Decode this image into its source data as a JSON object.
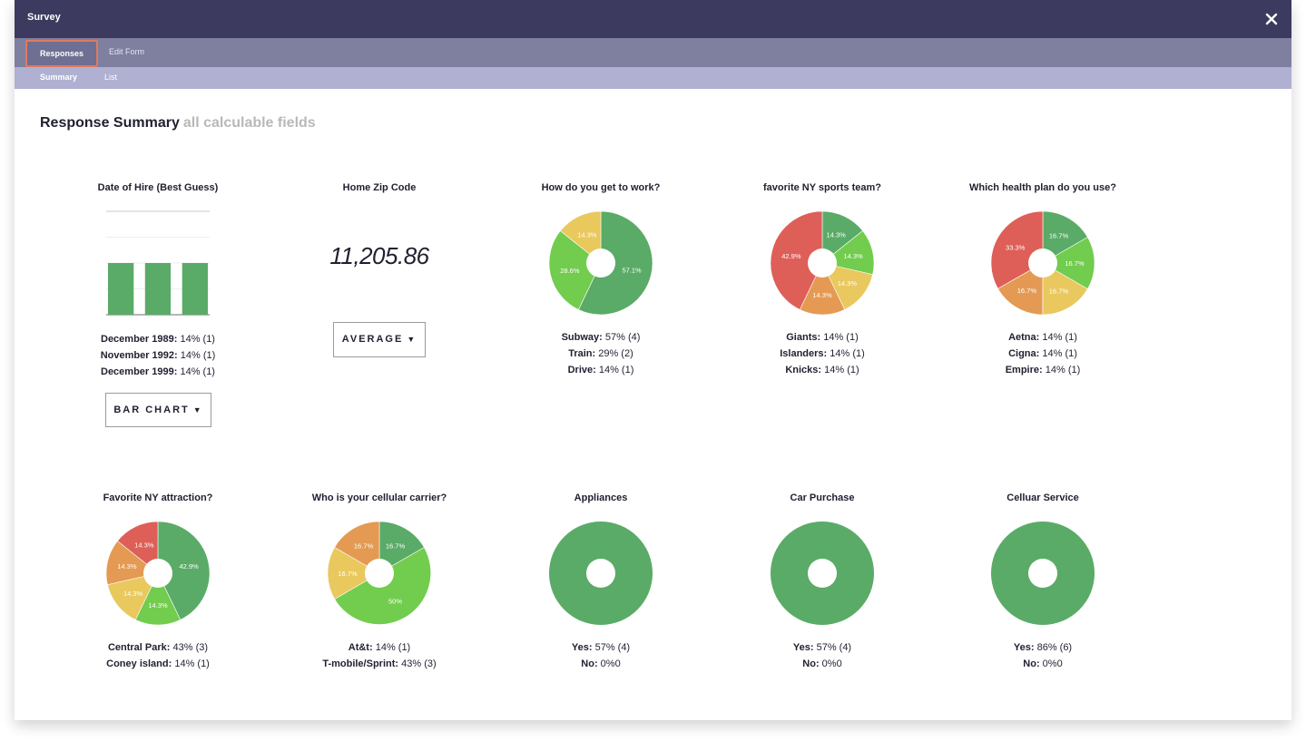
{
  "window": {
    "title": "Survey"
  },
  "tabs": {
    "primary": [
      "Responses",
      "Edit Form"
    ],
    "secondary": [
      "Summary",
      "List"
    ]
  },
  "heading": {
    "title": "Response Summary",
    "subtitle": "all calculable fields"
  },
  "colors": {
    "dark_green": "#5aab67",
    "green": "#72cc4e",
    "yellow": "#e9c85e",
    "orange": "#e49a52",
    "red": "#de5f58"
  },
  "cards": {
    "hire": {
      "question": "Date of Hire (Best Guess)",
      "legend": [
        {
          "label": "December 1989:",
          "value": "14% (1)"
        },
        {
          "label": "November 1992:",
          "value": "14% (1)"
        },
        {
          "label": "December 1999:",
          "value": "14% (1)"
        }
      ],
      "button": "BAR CHART"
    },
    "zip": {
      "question": "Home Zip Code",
      "value": "11,205.86",
      "button": "AVERAGE"
    },
    "work": {
      "question": "How do you get to work?",
      "legend": [
        {
          "label": "Subway:",
          "value": "57% (4)"
        },
        {
          "label": "Train:",
          "value": "29% (2)"
        },
        {
          "label": "Drive:",
          "value": "14% (1)"
        }
      ]
    },
    "sports": {
      "question": "favorite NY sports team?",
      "legend": [
        {
          "label": "Giants:",
          "value": "14% (1)"
        },
        {
          "label": "Islanders:",
          "value": "14% (1)"
        },
        {
          "label": "Knicks:",
          "value": "14% (1)"
        }
      ]
    },
    "health": {
      "question": "Which health plan do you use?",
      "legend": [
        {
          "label": "Aetna:",
          "value": "14% (1)"
        },
        {
          "label": "Cigna:",
          "value": "14% (1)"
        },
        {
          "label": "Empire:",
          "value": "14% (1)"
        }
      ]
    },
    "attraction": {
      "question": "Favorite NY attraction?",
      "legend": [
        {
          "label": "Central Park:",
          "value": "43% (3)"
        },
        {
          "label": "Coney island:",
          "value": "14% (1)"
        }
      ]
    },
    "carrier": {
      "question": "Who is your cellular carrier?",
      "legend": [
        {
          "label": "At&t:",
          "value": "14% (1)"
        },
        {
          "label": "T-mobile/Sprint:",
          "value": "43% (3)"
        }
      ]
    },
    "appliances": {
      "question": "Appliances",
      "legend": [
        {
          "label": "Yes:",
          "value": "57% (4)"
        },
        {
          "label": "No:",
          "value": "0%0"
        }
      ]
    },
    "car": {
      "question": "Car Purchase",
      "legend": [
        {
          "label": "Yes:",
          "value": "57% (4)"
        },
        {
          "label": "No:",
          "value": "0%0"
        }
      ]
    },
    "cell": {
      "question": "Celluar Service",
      "legend": [
        {
          "label": "Yes:",
          "value": "86% (6)"
        },
        {
          "label": "No:",
          "value": "0%0"
        }
      ]
    }
  },
  "chart_data": [
    {
      "type": "bar",
      "title": "Date of Hire (Best Guess)",
      "categories": [
        "December 1989",
        "November 1992",
        "December 1999"
      ],
      "values": [
        1,
        1,
        1
      ],
      "ylim": [
        0,
        2
      ],
      "grid": true
    },
    {
      "type": "pie",
      "title": "How do you get to work?",
      "slices": [
        {
          "label": "57.1%",
          "value": 57.1,
          "color": "dark_green"
        },
        {
          "label": "28.6%",
          "value": 28.6,
          "color": "green"
        },
        {
          "label": "14.3%",
          "value": 14.3,
          "color": "yellow"
        }
      ]
    },
    {
      "type": "pie",
      "title": "favorite NY sports team?",
      "slices": [
        {
          "label": "14.3%",
          "value": 14.3,
          "color": "dark_green"
        },
        {
          "label": "14.3%",
          "value": 14.3,
          "color": "green"
        },
        {
          "label": "14.3%",
          "value": 14.3,
          "color": "yellow"
        },
        {
          "label": "14.3%",
          "value": 14.3,
          "color": "orange"
        },
        {
          "label": "42.9%",
          "value": 42.9,
          "color": "red"
        }
      ]
    },
    {
      "type": "pie",
      "title": "Which health plan do you use?",
      "slices": [
        {
          "label": "16.7%",
          "value": 16.7,
          "color": "dark_green"
        },
        {
          "label": "16.7%",
          "value": 16.7,
          "color": "green"
        },
        {
          "label": "16.7%",
          "value": 16.7,
          "color": "yellow"
        },
        {
          "label": "16.7%",
          "value": 16.7,
          "color": "orange"
        },
        {
          "label": "33.3%",
          "value": 33.3,
          "color": "red"
        }
      ]
    },
    {
      "type": "pie",
      "title": "Favorite NY attraction?",
      "slices": [
        {
          "label": "42.9%",
          "value": 42.9,
          "color": "dark_green"
        },
        {
          "label": "14.3%",
          "value": 14.3,
          "color": "green"
        },
        {
          "label": "14.3%",
          "value": 14.3,
          "color": "yellow"
        },
        {
          "label": "14.3%",
          "value": 14.3,
          "color": "orange"
        },
        {
          "label": "14.3%",
          "value": 14.3,
          "color": "red"
        }
      ]
    },
    {
      "type": "pie",
      "title": "Who is your cellular carrier?",
      "slices": [
        {
          "label": "16.7%",
          "value": 16.7,
          "color": "dark_green"
        },
        {
          "label": "50%",
          "value": 50,
          "color": "green"
        },
        {
          "label": "16.7%",
          "value": 16.7,
          "color": "yellow"
        },
        {
          "label": "16.7%",
          "value": 16.7,
          "color": "orange"
        }
      ]
    },
    {
      "type": "pie",
      "title": "Appliances",
      "slices": [
        {
          "label": "",
          "value": 100,
          "color": "dark_green"
        }
      ]
    },
    {
      "type": "pie",
      "title": "Car Purchase",
      "slices": [
        {
          "label": "",
          "value": 100,
          "color": "dark_green"
        }
      ]
    },
    {
      "type": "pie",
      "title": "Celluar Service",
      "slices": [
        {
          "label": "",
          "value": 100,
          "color": "dark_green"
        }
      ]
    }
  ]
}
